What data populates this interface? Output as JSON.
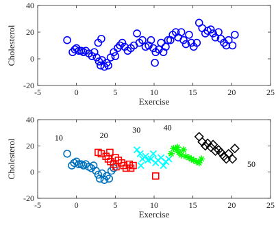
{
  "chart_data": [
    {
      "type": "scatter",
      "title": "",
      "xlabel": "Exercise",
      "ylabel": "Cholesterol",
      "xlim": [
        -5,
        25
      ],
      "ylim": [
        -20,
        40
      ],
      "xticks": [
        "-5",
        "0",
        "5",
        "10",
        "15",
        "20",
        "25"
      ],
      "yticks": [
        "-20",
        "0",
        "20",
        "40"
      ],
      "grid": false,
      "legend": "none",
      "series": [
        {
          "marker": "circle",
          "color": "#0000ff",
          "points": [
            [
              -1.2,
              14
            ],
            [
              -0.5,
              5
            ],
            [
              -0.2,
              7
            ],
            [
              0,
              8
            ],
            [
              0.3,
              6
            ],
            [
              0.6,
              6
            ],
            [
              0.9,
              5
            ],
            [
              1.2,
              6
            ],
            [
              1.6,
              4
            ],
            [
              2.0,
              2
            ],
            [
              2.3,
              5
            ],
            [
              2.6,
              1
            ],
            [
              2.9,
              -2
            ],
            [
              3.1,
              -5
            ],
            [
              3.3,
              -1
            ],
            [
              3.6,
              -6
            ],
            [
              3.9,
              -3
            ],
            [
              4.1,
              -5
            ],
            [
              2.8,
              12
            ],
            [
              3.2,
              15
            ],
            [
              4.4,
              1
            ],
            [
              4.8,
              5
            ],
            [
              5.0,
              2
            ],
            [
              5.3,
              8
            ],
            [
              5.6,
              10
            ],
            [
              5.9,
              12
            ],
            [
              6.2,
              9
            ],
            [
              6.6,
              6
            ],
            [
              7.0,
              8
            ],
            [
              7.4,
              10
            ],
            [
              7.8,
              19
            ],
            [
              8.1,
              12
            ],
            [
              8.5,
              14
            ],
            [
              8.9,
              9
            ],
            [
              9.3,
              10
            ],
            [
              9.6,
              14
            ],
            [
              9.9,
              8
            ],
            [
              10.2,
              5
            ],
            [
              10.6,
              7
            ],
            [
              10.9,
              12
            ],
            [
              11.2,
              5
            ],
            [
              11.5,
              9
            ],
            [
              11.8,
              14
            ],
            [
              10.1,
              -3
            ],
            [
              12.1,
              14
            ],
            [
              12.4,
              18
            ],
            [
              12.8,
              20
            ],
            [
              13.1,
              16
            ],
            [
              13.5,
              20
            ],
            [
              13.8,
              14
            ],
            [
              14.1,
              11
            ],
            [
              14.5,
              18
            ],
            [
              14.8,
              12
            ],
            [
              15.1,
              9
            ],
            [
              15.5,
              12
            ],
            [
              15.8,
              27
            ],
            [
              16.2,
              23
            ],
            [
              16.6,
              19
            ],
            [
              16.9,
              21
            ],
            [
              17.3,
              22
            ],
            [
              17.6,
              19
            ],
            [
              17.9,
              16
            ],
            [
              18.3,
              20
            ],
            [
              18.6,
              15
            ],
            [
              19.0,
              12
            ],
            [
              19.3,
              10
            ],
            [
              19.6,
              14
            ],
            [
              20.1,
              10
            ],
            [
              20.4,
              18
            ]
          ]
        }
      ]
    },
    {
      "type": "scatter",
      "title": "",
      "xlabel": "Exercise",
      "ylabel": "Cholesterol",
      "xlim": [
        -5,
        25
      ],
      "ylim": [
        -20,
        40
      ],
      "xticks": [
        "-5",
        "0",
        "5",
        "10",
        "15",
        "20",
        "25"
      ],
      "yticks": [
        "-20",
        "0",
        "20",
        "40"
      ],
      "grid": false,
      "legend": "none",
      "annotations": [
        {
          "text": "10",
          "x": -2.8,
          "y": 24
        },
        {
          "text": "20",
          "x": 3.0,
          "y": 26
        },
        {
          "text": "30",
          "x": 7.2,
          "y": 30
        },
        {
          "text": "40",
          "x": 11.2,
          "y": 32
        },
        {
          "text": "50",
          "x": 22.0,
          "y": 4
        }
      ],
      "series": [
        {
          "marker": "circle",
          "color": "#0072bd",
          "points": [
            [
              -1.2,
              14
            ],
            [
              -0.6,
              5
            ],
            [
              -0.3,
              7
            ],
            [
              0,
              8
            ],
            [
              0.3,
              6
            ],
            [
              0.6,
              6
            ],
            [
              0.9,
              5
            ],
            [
              1.2,
              6
            ],
            [
              1.6,
              4
            ],
            [
              1.9,
              3
            ],
            [
              2.2,
              5
            ],
            [
              2.5,
              1
            ],
            [
              2.8,
              -2
            ],
            [
              3.0,
              -5
            ],
            [
              3.3,
              -1
            ],
            [
              3.6,
              -6
            ],
            [
              3.9,
              -3
            ],
            [
              4.2,
              -5
            ],
            [
              4.5,
              1
            ],
            [
              4.8,
              3
            ]
          ]
        },
        {
          "marker": "square",
          "color": "#ff0000",
          "points": [
            [
              2.8,
              15
            ],
            [
              3.2,
              14
            ],
            [
              3.8,
              12
            ],
            [
              4.1,
              10
            ],
            [
              4.4,
              8
            ],
            [
              4.8,
              6
            ],
            [
              5.1,
              4
            ],
            [
              5.4,
              9
            ],
            [
              5.8,
              7
            ],
            [
              6.1,
              5
            ],
            [
              6.4,
              3
            ],
            [
              6.8,
              6
            ],
            [
              7.0,
              3
            ],
            [
              7.3,
              5
            ],
            [
              4.3,
              15
            ],
            [
              5.0,
              11
            ],
            [
              10.2,
              -3
            ]
          ]
        },
        {
          "marker": "cross",
          "color": "#00ffff",
          "points": [
            [
              7.8,
              17
            ],
            [
              8.2,
              14
            ],
            [
              8.5,
              10
            ],
            [
              8.9,
              12
            ],
            [
              9.2,
              9
            ],
            [
              9.6,
              10
            ],
            [
              9.9,
              14
            ],
            [
              10.2,
              7
            ],
            [
              10.5,
              9
            ],
            [
              10.9,
              11
            ],
            [
              11.2,
              5
            ],
            [
              11.5,
              8
            ],
            [
              11.9,
              10
            ],
            [
              8.3,
              5
            ]
          ]
        },
        {
          "marker": "star",
          "color": "#00ff00",
          "points": [
            [
              12.2,
              14
            ],
            [
              12.5,
              18
            ],
            [
              12.9,
              17
            ],
            [
              13.2,
              15
            ],
            [
              13.5,
              13
            ],
            [
              13.8,
              17
            ],
            [
              14.1,
              12
            ],
            [
              14.5,
              11
            ],
            [
              14.8,
              10
            ],
            [
              15.1,
              9
            ],
            [
              15.5,
              8
            ],
            [
              15.8,
              7
            ],
            [
              16.1,
              10
            ],
            [
              13.0,
              19
            ]
          ]
        },
        {
          "marker": "diamond",
          "color": "#000000",
          "points": [
            [
              15.8,
              27
            ],
            [
              16.2,
              23
            ],
            [
              16.6,
              20
            ],
            [
              16.9,
              22
            ],
            [
              17.3,
              19
            ],
            [
              17.6,
              21
            ],
            [
              17.9,
              16
            ],
            [
              18.3,
              17
            ],
            [
              18.6,
              15
            ],
            [
              19.0,
              12
            ],
            [
              19.3,
              10
            ],
            [
              19.6,
              14
            ],
            [
              20.1,
              10
            ],
            [
              20.4,
              18
            ]
          ]
        }
      ]
    }
  ]
}
